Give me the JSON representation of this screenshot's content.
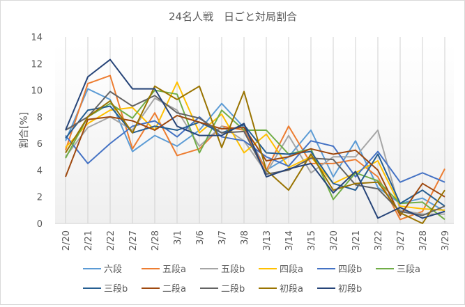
{
  "chart_data": {
    "type": "line",
    "title": "24名人戦　日ごと対局割合",
    "xlabel": "",
    "ylabel": "割合[%]",
    "ylim": [
      0,
      14
    ],
    "yticks": [
      0,
      2,
      4,
      6,
      8,
      10,
      12,
      14
    ],
    "grid": "vertical",
    "legend": "bottom",
    "categories": [
      "2/20",
      "2/21",
      "2/22",
      "2/27",
      "2/28",
      "3/1",
      "3/6",
      "3/7",
      "3/8",
      "3/13",
      "3/14",
      "3/15",
      "3/20",
      "3/21",
      "3/22",
      "3/27",
      "3/28",
      "3/29"
    ],
    "series": [
      {
        "name": "六段",
        "color": "#5B9BD5",
        "values": [
          6.2,
          10.1,
          9.3,
          5.4,
          6.6,
          5.8,
          7.0,
          9.0,
          7.2,
          4.0,
          5.0,
          7.0,
          3.5,
          6.2,
          2.7,
          1.5,
          1.9,
          0.9
        ]
      },
      {
        "name": "五段a",
        "color": "#ED7D31",
        "values": [
          5.5,
          10.5,
          11.1,
          5.6,
          8.3,
          5.1,
          5.6,
          7.3,
          7.0,
          4.0,
          7.3,
          4.5,
          4.5,
          4.8,
          3.5,
          0.3,
          0.9,
          4.1
        ]
      },
      {
        "name": "五段b",
        "color": "#A5A5A5",
        "values": [
          5.0,
          7.2,
          8.0,
          7.0,
          9.4,
          8.5,
          5.8,
          7.3,
          6.2,
          3.8,
          6.6,
          3.8,
          5.0,
          5.0,
          7.0,
          1.0,
          0.7,
          0.7
        ]
      },
      {
        "name": "四段a",
        "color": "#FFC000",
        "values": [
          5.7,
          7.5,
          8.5,
          8.7,
          7.0,
          10.6,
          6.8,
          8.2,
          5.3,
          6.7,
          4.2,
          5.0,
          3.0,
          3.8,
          4.7,
          1.3,
          1.1,
          1.0
        ]
      },
      {
        "name": "四段b",
        "color": "#4472C4",
        "values": [
          6.6,
          4.5,
          6.0,
          7.3,
          7.7,
          6.5,
          8.0,
          6.5,
          6.2,
          5.0,
          4.3,
          6.2,
          5.8,
          3.5,
          5.4,
          3.1,
          3.8,
          3.1
        ]
      },
      {
        "name": "三段a",
        "color": "#70AD47",
        "values": [
          4.9,
          8.0,
          9.0,
          7.9,
          10.0,
          9.7,
          5.3,
          8.5,
          7.0,
          7.0,
          5.2,
          5.6,
          1.8,
          3.8,
          3.2,
          1.5,
          1.6,
          0.3
        ]
      },
      {
        "name": "三段b",
        "color": "#255E91",
        "values": [
          6.4,
          8.5,
          8.8,
          6.8,
          7.3,
          7.0,
          7.6,
          6.8,
          7.4,
          5.3,
          5.2,
          5.4,
          3.0,
          2.5,
          5.2,
          1.5,
          2.5,
          1.3
        ]
      },
      {
        "name": "二段a",
        "color": "#9E480E",
        "values": [
          3.5,
          7.8,
          8.0,
          7.7,
          7.0,
          8.1,
          7.6,
          7.1,
          7.2,
          4.7,
          5.0,
          5.6,
          5.2,
          5.5,
          4.0,
          0.6,
          3.0,
          2.0
        ]
      },
      {
        "name": "二段b",
        "color": "#636363",
        "values": [
          7.0,
          8.0,
          9.9,
          8.8,
          9.6,
          8.3,
          7.9,
          6.8,
          6.9,
          3.7,
          4.0,
          4.9,
          4.8,
          2.9,
          2.6,
          0.9,
          0.6,
          1.3
        ]
      },
      {
        "name": "初段a",
        "color": "#997300",
        "values": [
          5.3,
          8.0,
          9.2,
          6.8,
          10.3,
          9.3,
          10.3,
          5.7,
          9.9,
          4.0,
          2.5,
          5.2,
          2.5,
          3.0,
          3.1,
          0.8,
          0.0,
          2.5
        ]
      },
      {
        "name": "初段b",
        "color": "#264478",
        "values": [
          7.0,
          11.0,
          12.3,
          10.1,
          10.1,
          7.3,
          6.6,
          6.6,
          7.5,
          3.5,
          4.1,
          4.5,
          2.3,
          3.9,
          0.4,
          1.2,
          0.4,
          0.9
        ]
      }
    ]
  }
}
